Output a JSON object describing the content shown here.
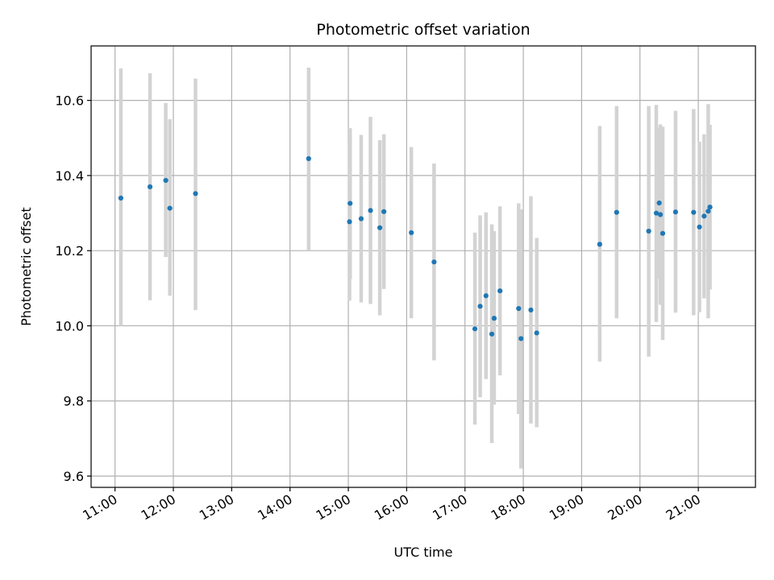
{
  "chart_data": {
    "type": "scatter",
    "title": "Photometric offset variation",
    "xlabel": "UTC time",
    "ylabel": "Photometric offset",
    "x_unit": "UTC hour",
    "xlim": [
      10.59,
      21.98
    ],
    "ylim": [
      9.57,
      10.745
    ],
    "grid": true,
    "x_ticks": [
      {
        "value": 11,
        "label": "11:00"
      },
      {
        "value": 12,
        "label": "12:00"
      },
      {
        "value": 13,
        "label": "13:00"
      },
      {
        "value": 14,
        "label": "14:00"
      },
      {
        "value": 15,
        "label": "15:00"
      },
      {
        "value": 16,
        "label": "16:00"
      },
      {
        "value": 17,
        "label": "17:00"
      },
      {
        "value": 18,
        "label": "18:00"
      },
      {
        "value": 19,
        "label": "19:00"
      },
      {
        "value": 20,
        "label": "20:00"
      },
      {
        "value": 21,
        "label": "21:00"
      }
    ],
    "y_ticks": [
      {
        "value": 9.6,
        "label": "9.6"
      },
      {
        "value": 9.8,
        "label": "9.8"
      },
      {
        "value": 10.0,
        "label": "10.0"
      },
      {
        "value": 10.2,
        "label": "10.2"
      },
      {
        "value": 10.4,
        "label": "10.4"
      },
      {
        "value": 10.6,
        "label": "10.6"
      }
    ],
    "series": [
      {
        "marker_color": "#1f77b4",
        "errorbar_color": "#d3d3d3",
        "points": [
          {
            "x": 11.1,
            "y": 10.34,
            "lo": 10.0,
            "hi": 10.685
          },
          {
            "x": 11.6,
            "y": 10.37,
            "lo": 10.068,
            "hi": 10.672
          },
          {
            "x": 11.87,
            "y": 10.387,
            "lo": 10.183,
            "hi": 10.593
          },
          {
            "x": 11.94,
            "y": 10.313,
            "lo": 10.08,
            "hi": 10.55
          },
          {
            "x": 12.38,
            "y": 10.352,
            "lo": 10.042,
            "hi": 10.658
          },
          {
            "x": 14.32,
            "y": 10.445,
            "lo": 10.2,
            "hi": 10.687
          },
          {
            "x": 15.02,
            "y": 10.277,
            "lo": 10.067,
            "hi": 10.486
          },
          {
            "x": 15.03,
            "y": 10.326,
            "lo": 10.125,
            "hi": 10.526
          },
          {
            "x": 15.22,
            "y": 10.285,
            "lo": 10.062,
            "hi": 10.508
          },
          {
            "x": 15.38,
            "y": 10.307,
            "lo": 10.058,
            "hi": 10.556
          },
          {
            "x": 15.54,
            "y": 10.261,
            "lo": 10.028,
            "hi": 10.494
          },
          {
            "x": 15.61,
            "y": 10.304,
            "lo": 10.098,
            "hi": 10.51
          },
          {
            "x": 16.08,
            "y": 10.248,
            "lo": 10.02,
            "hi": 10.476
          },
          {
            "x": 16.47,
            "y": 10.17,
            "lo": 9.908,
            "hi": 10.432
          },
          {
            "x": 17.17,
            "y": 9.992,
            "lo": 9.737,
            "hi": 10.248
          },
          {
            "x": 17.26,
            "y": 10.052,
            "lo": 9.81,
            "hi": 10.294
          },
          {
            "x": 17.36,
            "y": 10.08,
            "lo": 9.858,
            "hi": 10.302
          },
          {
            "x": 17.46,
            "y": 9.978,
            "lo": 9.688,
            "hi": 10.27
          },
          {
            "x": 17.5,
            "y": 10.02,
            "lo": 9.79,
            "hi": 10.252
          },
          {
            "x": 17.6,
            "y": 10.093,
            "lo": 9.868,
            "hi": 10.318
          },
          {
            "x": 17.92,
            "y": 10.046,
            "lo": 9.765,
            "hi": 10.326
          },
          {
            "x": 17.96,
            "y": 9.966,
            "lo": 9.62,
            "hi": 10.31
          },
          {
            "x": 18.13,
            "y": 10.042,
            "lo": 9.74,
            "hi": 10.345
          },
          {
            "x": 18.23,
            "y": 9.981,
            "lo": 9.73,
            "hi": 10.234
          },
          {
            "x": 19.31,
            "y": 10.217,
            "lo": 9.905,
            "hi": 10.532
          },
          {
            "x": 19.6,
            "y": 10.302,
            "lo": 10.02,
            "hi": 10.585
          },
          {
            "x": 20.15,
            "y": 10.252,
            "lo": 9.918,
            "hi": 10.585
          },
          {
            "x": 20.28,
            "y": 10.3,
            "lo": 10.01,
            "hi": 10.588
          },
          {
            "x": 20.33,
            "y": 10.327,
            "lo": 10.126,
            "hi": 10.527
          },
          {
            "x": 20.35,
            "y": 10.296,
            "lo": 10.056,
            "hi": 10.536
          },
          {
            "x": 20.39,
            "y": 10.246,
            "lo": 9.962,
            "hi": 10.53
          },
          {
            "x": 20.61,
            "y": 10.303,
            "lo": 10.035,
            "hi": 10.572
          },
          {
            "x": 20.92,
            "y": 10.302,
            "lo": 10.028,
            "hi": 10.577
          },
          {
            "x": 21.02,
            "y": 10.263,
            "lo": 10.036,
            "hi": 10.49
          },
          {
            "x": 21.1,
            "y": 10.292,
            "lo": 10.073,
            "hi": 10.51
          },
          {
            "x": 21.17,
            "y": 10.305,
            "lo": 10.02,
            "hi": 10.59
          },
          {
            "x": 21.2,
            "y": 10.316,
            "lo": 10.097,
            "hi": 10.535
          }
        ]
      }
    ]
  }
}
